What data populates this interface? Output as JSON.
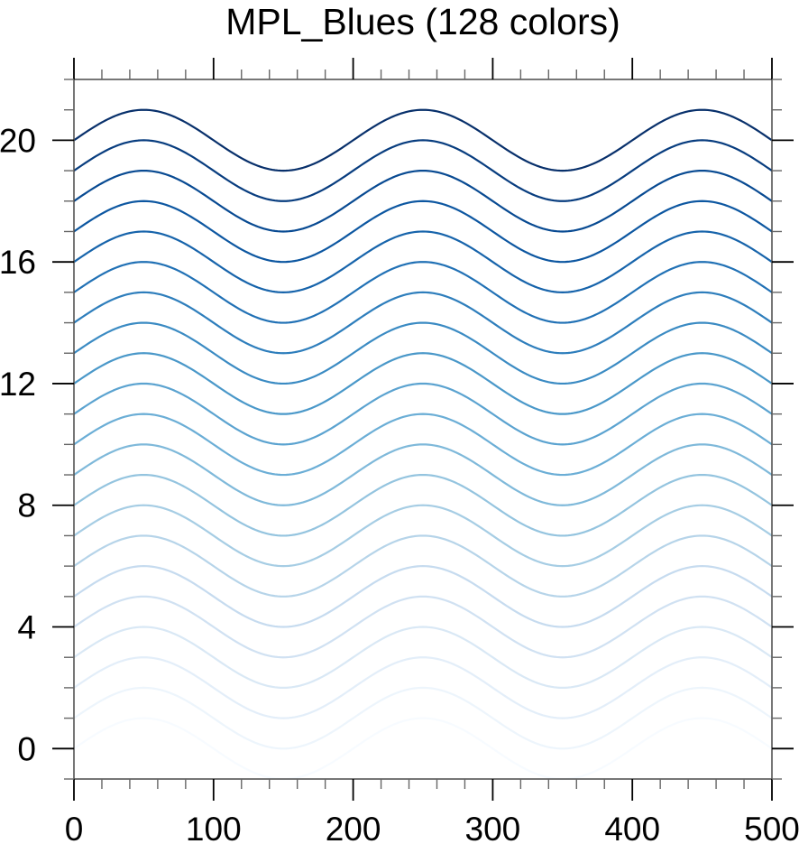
{
  "page": {
    "background": "#ffffff"
  },
  "chart_data": {
    "type": "line",
    "title": "MPL_Blues (128 colors)",
    "colormap_name": "MPL_Blues",
    "n_colors": 128,
    "xlabel": "",
    "ylabel": "",
    "x_range": [
      0,
      500
    ],
    "y_range": [
      -1,
      22
    ],
    "x_major_ticks": [
      0,
      100,
      200,
      300,
      400,
      500
    ],
    "x_minor_tick_step": 20,
    "y_major_ticks": [
      0,
      4,
      8,
      12,
      16,
      20
    ],
    "y_minor_tick_step": 1,
    "grid": false,
    "legend": false,
    "wave": {
      "shape": "sine",
      "equation": "y = offset + amplitude * sin(2*pi*x / period)",
      "amplitude": 1,
      "period": 200,
      "phase": 0
    },
    "line_width": 2.2,
    "axis_color": "#4a4a4a",
    "major_tick_color": "#000000",
    "minor_tick_color": "#666666",
    "label_color": "#000000",
    "major_tick_length": 24,
    "minor_tick_length": 11,
    "series": [
      {
        "offset": 0,
        "color": "#F7FBFF"
      },
      {
        "offset": 1,
        "color": "#EDF5FC"
      },
      {
        "offset": 2,
        "color": "#E3EEF9"
      },
      {
        "offset": 3,
        "color": "#D9E8F5"
      },
      {
        "offset": 4,
        "color": "#D0E1F2"
      },
      {
        "offset": 5,
        "color": "#C6DBEF"
      },
      {
        "offset": 6,
        "color": "#B6D4E9"
      },
      {
        "offset": 7,
        "color": "#A6CDE4"
      },
      {
        "offset": 8,
        "color": "#94C4DF"
      },
      {
        "offset": 9,
        "color": "#7FB9DA"
      },
      {
        "offset": 10,
        "color": "#6BAED6"
      },
      {
        "offset": 11,
        "color": "#5BA3D0"
      },
      {
        "offset": 12,
        "color": "#4A98C9"
      },
      {
        "offset": 13,
        "color": "#3B8BC3"
      },
      {
        "offset": 14,
        "color": "#2E7EBC"
      },
      {
        "offset": 15,
        "color": "#2171B5"
      },
      {
        "offset": 16,
        "color": "#1764AB"
      },
      {
        "offset": 17,
        "color": "#0D57A1"
      },
      {
        "offset": 18,
        "color": "#084A92"
      },
      {
        "offset": 19,
        "color": "#083D7F"
      },
      {
        "offset": 20,
        "color": "#08306B"
      }
    ]
  }
}
